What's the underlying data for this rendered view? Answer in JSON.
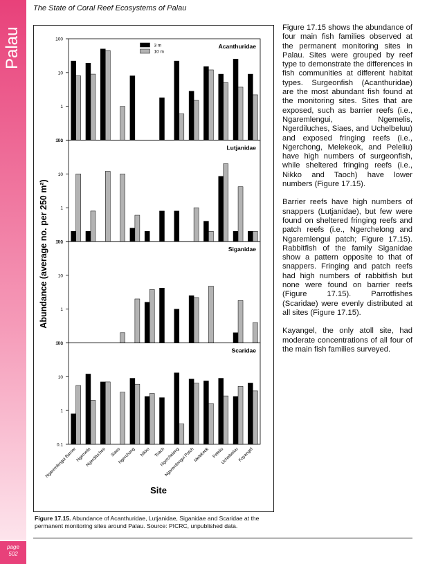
{
  "header": {
    "title": "The State of Coral Reef Ecosystems of Palau"
  },
  "sidebar": {
    "label": "Palau",
    "page_word": "page",
    "page_number": "502"
  },
  "figure": {
    "ylabel": "Abundance (average no. per 250 m²)",
    "xlabel": "Site",
    "caption": {
      "label": "Figure 17.15.",
      "text": "Abundance of Acanthuridae, Lutjanidae, Siganidae and Scaridae at the permanent monitoring sites around Palau.  Source: PICRC, unpublished data."
    }
  },
  "chart_data": [
    {
      "type": "bar",
      "title": "Acanthuridae",
      "log_y": true,
      "legend": "upper center",
      "ylim": [
        0.1,
        100
      ],
      "yticks": [
        0.1,
        1,
        10,
        100
      ],
      "series": [
        {
          "name": "3 m",
          "color": "#000000",
          "values": [
            22,
            19,
            50,
            null,
            8,
            null,
            1.8,
            22,
            2.8,
            15,
            9,
            25,
            9
          ]
        },
        {
          "name": "10 m",
          "color": "#b3b3b3",
          "values": [
            8,
            9,
            45,
            1.0,
            null,
            null,
            null,
            0.6,
            1.5,
            12,
            5,
            3.7,
            2.2
          ]
        }
      ]
    },
    {
      "type": "bar",
      "title": "Lutjanidae",
      "log_y": true,
      "ylim": [
        0.1,
        100
      ],
      "yticks": [
        0.1,
        1,
        10,
        100
      ],
      "series": [
        {
          "color": "#000000",
          "values": [
            0.2,
            0.2,
            null,
            null,
            0.25,
            0.2,
            0.8,
            0.8,
            null,
            0.4,
            8.5,
            0.2,
            0.2
          ]
        },
        {
          "color": "#b3b3b3",
          "values": [
            10,
            0.8,
            12,
            10,
            0.6,
            null,
            null,
            null,
            1.0,
            0.2,
            20,
            4.2,
            0.2
          ]
        }
      ]
    },
    {
      "type": "bar",
      "title": "Siganidae",
      "log_y": true,
      "ylim": [
        0.1,
        100
      ],
      "yticks": [
        0.1,
        1,
        10,
        100
      ],
      "series": [
        {
          "color": "#000000",
          "values": [
            null,
            null,
            null,
            null,
            null,
            1.6,
            4.2,
            1.0,
            2.5,
            null,
            null,
            0.2,
            null
          ]
        },
        {
          "color": "#b3b3b3",
          "values": [
            null,
            null,
            null,
            0.2,
            2.0,
            3.8,
            null,
            null,
            2.2,
            4.8,
            null,
            1.8,
            0.4
          ]
        }
      ]
    },
    {
      "type": "bar",
      "title": "Scaridae",
      "log_y": true,
      "ylim": [
        0.1,
        100
      ],
      "yticks": [
        0.1,
        1,
        10,
        100
      ],
      "categories": [
        "Ngaremlengui Barrier",
        "Ngemelis",
        "Ngerdiluches",
        "Siaes",
        "Ngerchong",
        "Nikko",
        "Toach",
        "Ngerchelong",
        "Ngaremlengui Patch",
        "Melekeok",
        "Peleliu",
        "Uchelbeluu",
        "Kayangel"
      ],
      "series": [
        {
          "color": "#000000",
          "values": [
            0.8,
            12,
            7,
            null,
            9,
            2.6,
            2.4,
            13,
            8.5,
            7.5,
            9,
            2.6,
            6.5
          ]
        },
        {
          "color": "#b3b3b3",
          "values": [
            5.5,
            2.0,
            7,
            3.5,
            6,
            3.2,
            null,
            0.4,
            6.5,
            1.6,
            2.7,
            5.2,
            3.8
          ]
        }
      ]
    }
  ],
  "body": {
    "paragraphs": [
      "Figure 17.15 shows the abundance of four main fish families observed at the permanent monitoring sites in Palau. Sites were grouped by reef type to demonstrate the differences in fish communities at different habitat types.  Surgeonfish (Acanthuridae) are the most abundant fish found at the monitoring sites.  Sites that are exposed, such as barrier reefs (i.e., Ngaremlengui, Ngemelis, Ngerdiluches, Siaes, and Uchelbeluu) and exposed fringing reefs (i.e., Ngerchong, Melekeok, and Peleliu) have high numbers of surgeonfish, while sheltered fringing reefs (i.e., Nikko and Taoch) have lower numbers (Figure 17.15).",
      "Barrier reefs have high numbers of snappers (Lutjanidae), but few were found on sheltered fringing reefs and patch reefs (i.e., Ngerchelong and Ngaremlengui patch; Figure 17.15). Rabbitfish of the family Siganidae show a pattern opposite to that of snappers.  Fringing and patch reefs had high numbers of rabbitfish but none were found on barrier reefs (Figure 17.15).  Parrotfishes (Scaridae) were evenly distributed at all sites (Figure 17.15).",
      "Kayangel, the only atoll site, had moderate concentrations of all four of the main fish families surveyed."
    ]
  }
}
